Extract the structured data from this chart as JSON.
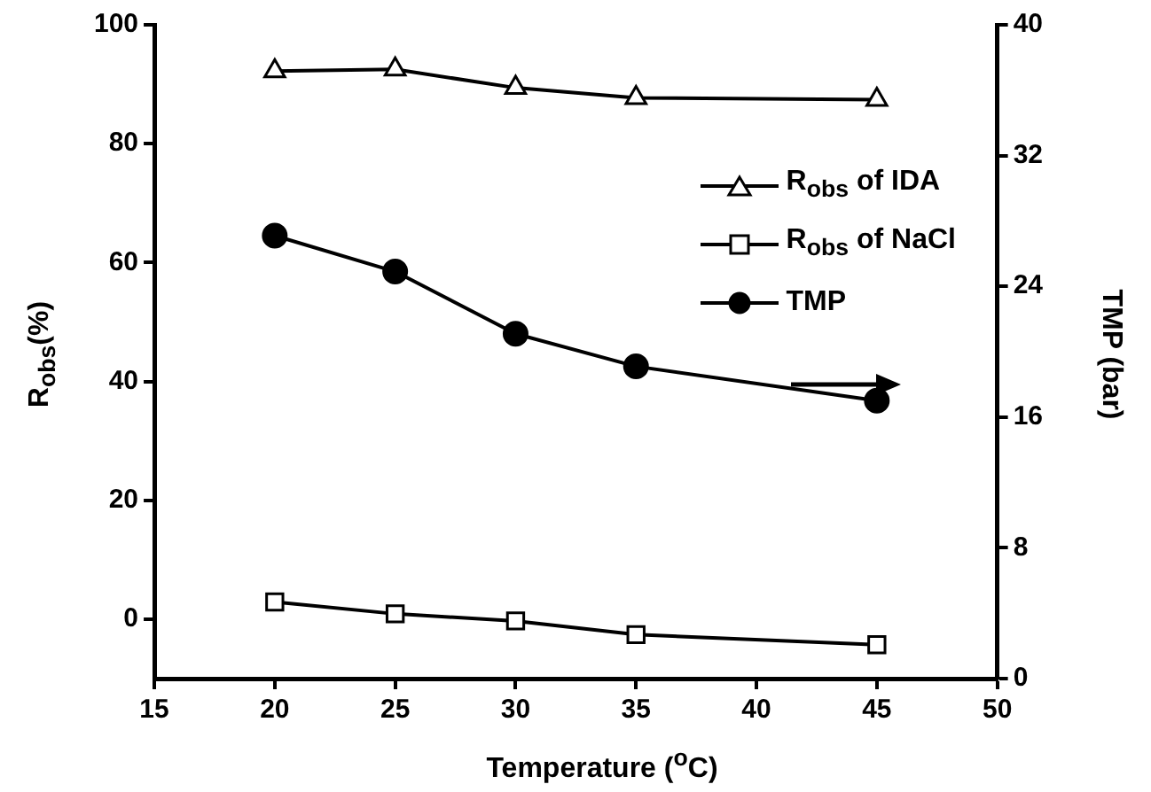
{
  "chart_data": {
    "type": "line",
    "xlabel": "Temperature ($^{o}$C)",
    "ylabel": "R$_{obs}$(%)",
    "y2label": "TMP (bar)",
    "x": [
      20,
      25,
      30,
      35,
      45
    ],
    "series": [
      {
        "name": "R$_{obs}$ of IDA",
        "color": "#000000",
        "marker": "triangle",
        "values": [
          92.2,
          92.5,
          89.4,
          87.7,
          87.4
        ]
      },
      {
        "name": "R$_{obs}$ of NaCl",
        "color": "#000000",
        "marker": "square",
        "values": [
          2.9,
          0.9,
          -0.3,
          -2.6,
          -4.3
        ]
      },
      {
        "name": "TMP",
        "color": "#000000",
        "marker": "circle",
        "axis": "y2",
        "values": [
          27.1,
          24.9,
          21.1,
          19.1,
          17.0
        ]
      }
    ],
    "xlim": [
      15,
      50
    ],
    "xticks": [
      15,
      20,
      25,
      30,
      35,
      40,
      45,
      50
    ],
    "ylim": [
      -10,
      100
    ],
    "yticks": [
      0,
      20,
      40,
      60,
      80,
      100
    ],
    "y2lim": [
      0,
      40
    ],
    "y2ticks": [
      0,
      8,
      16,
      24,
      32,
      40
    ],
    "legend": "top right",
    "grid": false,
    "line_style": "solid"
  }
}
